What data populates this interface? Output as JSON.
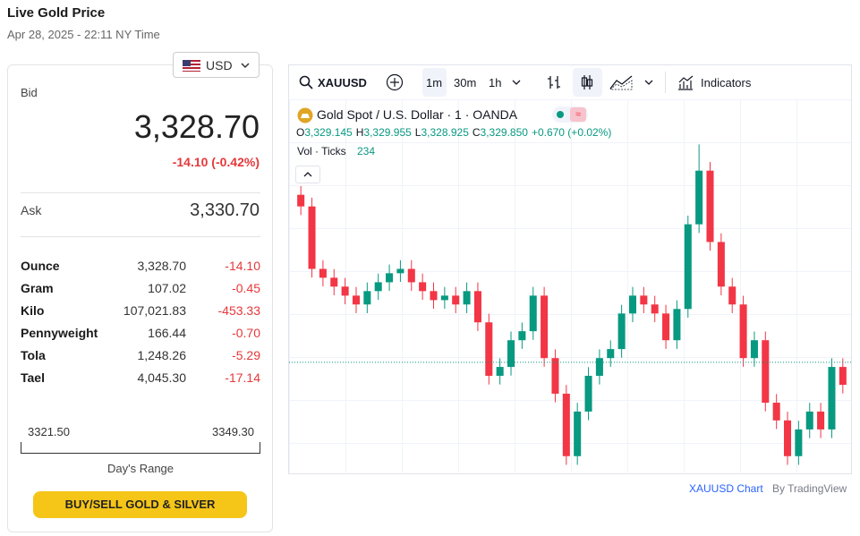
{
  "header": {
    "title": "Live Gold Price",
    "timestamp": "Apr 28, 2025 - 22:11 NY Time"
  },
  "currency": "USD",
  "bid": {
    "label": "Bid",
    "value": "3,328.70",
    "change": "-14.10 (-0.42%)"
  },
  "ask": {
    "label": "Ask",
    "value": "3,330.70"
  },
  "units": [
    [
      "Ounce",
      "3,328.70",
      "-14.10"
    ],
    [
      "Gram",
      "107.02",
      "-0.45"
    ],
    [
      "Kilo",
      "107,021.83",
      "-453.33"
    ],
    [
      "Pennyweight",
      "166.44",
      "-0.70"
    ],
    [
      "Tola",
      "1,248.26",
      "-5.29"
    ],
    [
      "Tael",
      "4,045.30",
      "-17.14"
    ]
  ],
  "range": {
    "low": "3321.50",
    "high": "3349.30",
    "label": "Day's Range"
  },
  "button": "BUY/SELL GOLD & SILVER",
  "toolbar": {
    "symbol": "XAUUSD",
    "intervals": [
      "1m",
      "30m",
      "1h"
    ],
    "indicators": "Indicators"
  },
  "legend": {
    "title": "Gold Spot / U.S. Dollar · 1 · OANDA",
    "ohlc": [
      {
        "key": "O",
        "value": "3,329.145"
      },
      {
        "key": "H",
        "value": "3,329.955"
      },
      {
        "key": "L",
        "value": "3,328.925"
      },
      {
        "key": "C",
        "value": "3,329.850"
      }
    ],
    "change": "+0.670 (+0.02%)",
    "vol_label": "Vol · Ticks",
    "vol_value": "234"
  },
  "footer": {
    "link": "XAUUSD Chart",
    "by": "By TradingView"
  },
  "chart_data": {
    "type": "candlestick",
    "up_color": "#089981",
    "down_color": "#f23645",
    "ylim": [
      3323.5,
      3345
    ],
    "price_line": 3329.85,
    "open": [
      3339.5,
      3338.83,
      3335.23,
      3334.72,
      3334.21,
      3333.69,
      3333.18,
      3333.95,
      3334.46,
      3334.98,
      3335.23,
      3334.46,
      3333.95,
      3333.43,
      3333.69,
      3333.18,
      3333.95,
      3332.15,
      3329.07,
      3329.58,
      3331.12,
      3331.64,
      3333.69,
      3330.09,
      3328.04,
      3324.44,
      3327.01,
      3329.07,
      3330.09,
      3330.61,
      3332.66,
      3333.69,
      3333.18,
      3332.66,
      3331.12,
      3332.92,
      3337.8,
      3340.89,
      3336.78,
      3334.21,
      3333.18,
      3330.09,
      3331.12,
      3327.52,
      3326.5,
      3324.44,
      3325.98,
      3327.01,
      3325.98,
      3329.58
    ],
    "high": [
      3340.0,
      3339.33,
      3335.73,
      3335.22,
      3334.71,
      3334.19,
      3334.45,
      3334.96,
      3335.48,
      3335.73,
      3335.73,
      3334.96,
      3334.45,
      3334.19,
      3334.19,
      3334.45,
      3334.45,
      3332.65,
      3330.08,
      3331.62,
      3332.14,
      3334.19,
      3334.19,
      3330.59,
      3328.54,
      3327.51,
      3329.57,
      3330.59,
      3331.11,
      3333.16,
      3334.19,
      3334.19,
      3333.68,
      3333.16,
      3333.42,
      3338.3,
      3342.4,
      3341.39,
      3337.28,
      3334.71,
      3333.68,
      3331.62,
      3331.62,
      3328.02,
      3327.0,
      3326.48,
      3327.51,
      3327.51,
      3330.08,
      3330.08
    ],
    "low": [
      3338.33,
      3334.73,
      3334.22,
      3333.71,
      3333.19,
      3332.68,
      3332.68,
      3333.45,
      3333.96,
      3334.48,
      3333.96,
      3333.45,
      3332.93,
      3332.93,
      3332.68,
      3332.68,
      3331.65,
      3328.57,
      3328.57,
      3329.08,
      3330.62,
      3331.14,
      3329.59,
      3327.54,
      3323.94,
      3323.94,
      3326.51,
      3328.57,
      3329.59,
      3330.11,
      3332.16,
      3332.68,
      3332.16,
      3330.62,
      3330.62,
      3332.42,
      3337.3,
      3336.28,
      3333.71,
      3332.68,
      3329.59,
      3329.59,
      3327.02,
      3326.0,
      3323.94,
      3323.94,
      3325.48,
      3325.48,
      3325.48,
      3328.05
    ],
    "close": [
      3338.83,
      3335.23,
      3334.72,
      3334.21,
      3333.69,
      3333.18,
      3333.95,
      3334.46,
      3334.98,
      3335.23,
      3334.46,
      3333.95,
      3333.43,
      3333.69,
      3333.18,
      3333.95,
      3332.15,
      3329.07,
      3329.58,
      3331.12,
      3331.64,
      3333.69,
      3330.09,
      3328.04,
      3324.44,
      3327.01,
      3329.07,
      3330.09,
      3330.61,
      3332.66,
      3333.69,
      3333.18,
      3332.66,
      3331.12,
      3332.92,
      3337.8,
      3340.89,
      3336.78,
      3334.21,
      3333.18,
      3330.09,
      3331.12,
      3327.52,
      3326.5,
      3324.44,
      3325.98,
      3327.01,
      3325.98,
      3329.58,
      3328.55
    ]
  }
}
